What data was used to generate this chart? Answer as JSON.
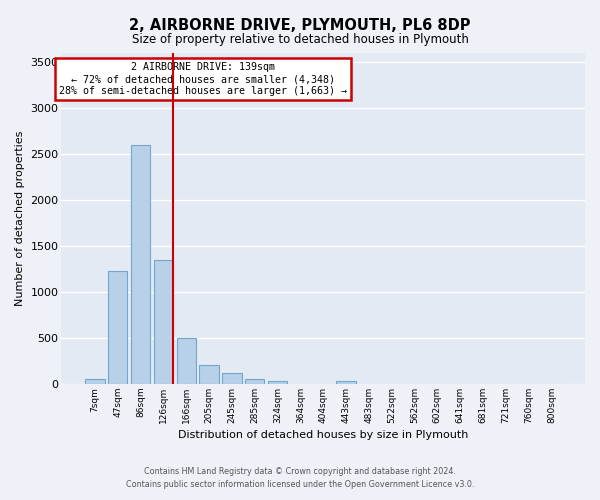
{
  "title": "2, AIRBORNE DRIVE, PLYMOUTH, PL6 8DP",
  "subtitle": "Size of property relative to detached houses in Plymouth",
  "xlabel": "Distribution of detached houses by size in Plymouth",
  "ylabel": "Number of detached properties",
  "bar_labels": [
    "7sqm",
    "47sqm",
    "86sqm",
    "126sqm",
    "166sqm",
    "205sqm",
    "245sqm",
    "285sqm",
    "324sqm",
    "364sqm",
    "404sqm",
    "443sqm",
    "483sqm",
    "522sqm",
    "562sqm",
    "602sqm",
    "641sqm",
    "681sqm",
    "721sqm",
    "760sqm",
    "800sqm"
  ],
  "bar_values": [
    50,
    1230,
    2590,
    1350,
    500,
    205,
    115,
    50,
    30,
    0,
    0,
    30,
    0,
    0,
    0,
    0,
    0,
    0,
    0,
    0,
    0
  ],
  "bar_color": "#b8d0e8",
  "bar_edge_color": "#6fa8cc",
  "ylim": [
    0,
    3600
  ],
  "yticks": [
    0,
    500,
    1000,
    1500,
    2000,
    2500,
    3000,
    3500
  ],
  "property_line_color": "#cc0000",
  "annotation_title": "2 AIRBORNE DRIVE: 139sqm",
  "annotation_line1": "← 72% of detached houses are smaller (4,348)",
  "annotation_line2": "28% of semi-detached houses are larger (1,663) →",
  "annotation_box_color": "#cc0000",
  "footer_line1": "Contains HM Land Registry data © Crown copyright and database right 2024.",
  "footer_line2": "Contains public sector information licensed under the Open Government Licence v3.0.",
  "background_color": "#eef2f8",
  "plot_bg_color": "#e4eaf4"
}
